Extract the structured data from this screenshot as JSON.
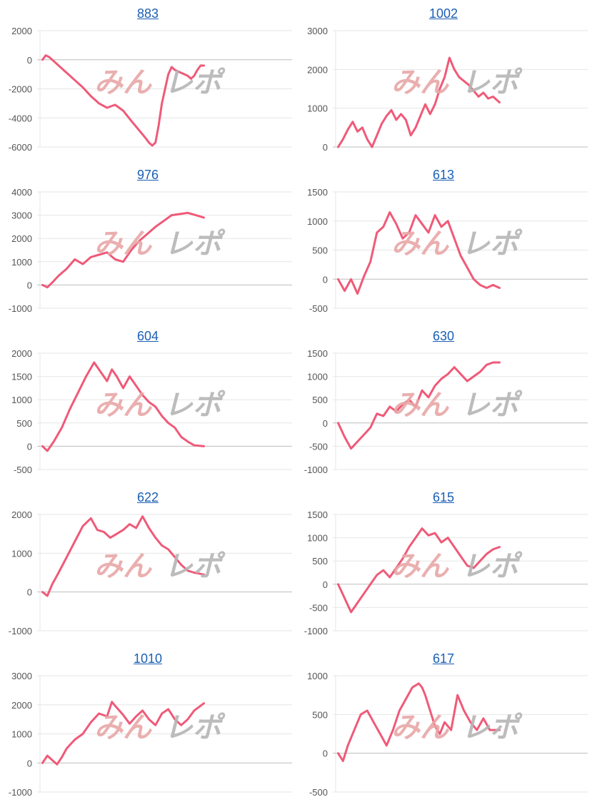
{
  "colors": {
    "line": "#ef5a78",
    "grid": "#e6e6e6",
    "axis": "#bdbdbd",
    "tick": "#555555",
    "link": "#1a5fb4",
    "watermark_pink": "#e8a7a7",
    "watermark_gray": "#b5b5b5"
  },
  "watermark": {
    "text": "みんレポ"
  },
  "chart_data": [
    {
      "type": "line",
      "title": "883",
      "ylim": [
        -6000,
        2000
      ],
      "yticks": [
        2000,
        0,
        -2000,
        -4000,
        -6000
      ],
      "x": [
        0,
        2,
        4,
        8,
        12,
        16,
        20,
        25,
        30,
        35,
        40,
        45,
        50,
        55,
        58,
        61,
        64,
        66,
        68,
        70,
        72,
        74,
        76,
        78,
        80,
        82,
        84,
        86,
        88,
        90,
        92,
        94,
        96,
        98,
        100
      ],
      "values": [
        0,
        300,
        200,
        -200,
        -600,
        -1000,
        -1400,
        -1900,
        -2500,
        -3000,
        -3300,
        -3100,
        -3500,
        -4200,
        -4600,
        -5000,
        -5400,
        -5700,
        -5900,
        -5700,
        -4500,
        -3000,
        -2000,
        -1000,
        -500,
        -700,
        -800,
        -900,
        -1000,
        -1100,
        -1300,
        -1100,
        -700,
        -400,
        -400
      ]
    },
    {
      "type": "line",
      "title": "1002",
      "ylim": [
        0,
        3000
      ],
      "yticks": [
        3000,
        2000,
        1000,
        0
      ],
      "x": [
        0,
        3,
        6,
        9,
        12,
        15,
        18,
        21,
        24,
        27,
        30,
        33,
        36,
        39,
        42,
        45,
        48,
        51,
        54,
        57,
        60,
        63,
        66,
        69,
        72,
        75,
        78,
        81,
        84,
        87,
        90,
        93,
        96,
        100
      ],
      "values": [
        0,
        200,
        450,
        650,
        400,
        500,
        200,
        0,
        300,
        600,
        800,
        950,
        700,
        850,
        700,
        300,
        500,
        800,
        1100,
        850,
        1100,
        1500,
        1800,
        2300,
        2000,
        1800,
        1700,
        1600,
        1450,
        1300,
        1400,
        1250,
        1300,
        1150
      ]
    },
    {
      "type": "line",
      "title": "976",
      "ylim": [
        -1000,
        4000
      ],
      "yticks": [
        4000,
        3000,
        2000,
        1000,
        0,
        -1000
      ],
      "x": [
        0,
        3,
        6,
        10,
        15,
        20,
        25,
        30,
        35,
        40,
        45,
        50,
        55,
        60,
        65,
        70,
        75,
        80,
        85,
        90,
        95,
        100
      ],
      "values": [
        0,
        -100,
        100,
        400,
        700,
        1100,
        900,
        1200,
        1300,
        1400,
        1100,
        1000,
        1500,
        1900,
        2200,
        2500,
        2750,
        3000,
        3050,
        3100,
        3000,
        2900
      ]
    },
    {
      "type": "line",
      "title": "613",
      "ylim": [
        -500,
        1500
      ],
      "yticks": [
        1500,
        1000,
        500,
        0,
        -500
      ],
      "x": [
        0,
        4,
        8,
        12,
        16,
        20,
        24,
        28,
        32,
        36,
        40,
        44,
        48,
        52,
        56,
        60,
        64,
        68,
        72,
        76,
        80,
        84,
        88,
        92,
        96,
        100
      ],
      "values": [
        0,
        -200,
        0,
        -250,
        50,
        300,
        800,
        900,
        1150,
        950,
        700,
        800,
        1100,
        950,
        800,
        1100,
        900,
        1000,
        700,
        400,
        200,
        0,
        -100,
        -150,
        -100,
        -150
      ]
    },
    {
      "type": "line",
      "title": "604",
      "ylim": [
        -500,
        2000
      ],
      "yticks": [
        2000,
        1500,
        1000,
        500,
        0,
        -500
      ],
      "x": [
        0,
        3,
        7,
        12,
        17,
        22,
        27,
        32,
        37,
        40,
        43,
        46,
        50,
        54,
        58,
        62,
        66,
        70,
        74,
        78,
        82,
        86,
        90,
        94,
        100
      ],
      "values": [
        0,
        -100,
        100,
        400,
        800,
        1150,
        1500,
        1800,
        1550,
        1400,
        1650,
        1500,
        1250,
        1500,
        1300,
        1100,
        950,
        850,
        650,
        500,
        400,
        200,
        100,
        20,
        0
      ]
    },
    {
      "type": "line",
      "title": "630",
      "ylim": [
        -1000,
        1500
      ],
      "yticks": [
        1500,
        1000,
        500,
        0,
        -500,
        -1000
      ],
      "x": [
        0,
        4,
        8,
        12,
        16,
        20,
        24,
        28,
        32,
        36,
        40,
        44,
        48,
        52,
        56,
        60,
        64,
        68,
        72,
        76,
        80,
        84,
        88,
        92,
        96,
        100
      ],
      "values": [
        0,
        -300,
        -550,
        -400,
        -250,
        -100,
        200,
        150,
        350,
        250,
        400,
        500,
        350,
        700,
        550,
        800,
        950,
        1050,
        1200,
        1050,
        900,
        1000,
        1100,
        1250,
        1300,
        1300
      ]
    },
    {
      "type": "line",
      "title": "622",
      "ylim": [
        -1000,
        2000
      ],
      "yticks": [
        2000,
        1000,
        0,
        -1000
      ],
      "x": [
        0,
        3,
        6,
        10,
        15,
        20,
        25,
        30,
        34,
        38,
        42,
        46,
        50,
        54,
        58,
        62,
        66,
        70,
        74,
        78,
        82,
        86,
        90,
        94,
        100
      ],
      "values": [
        0,
        -100,
        200,
        500,
        900,
        1300,
        1700,
        1900,
        1600,
        1550,
        1400,
        1500,
        1600,
        1750,
        1650,
        1950,
        1650,
        1400,
        1200,
        1100,
        900,
        700,
        550,
        500,
        450
      ]
    },
    {
      "type": "line",
      "title": "615",
      "ylim": [
        -1000,
        1500
      ],
      "yticks": [
        1500,
        1000,
        500,
        0,
        -500,
        -1000
      ],
      "x": [
        0,
        4,
        8,
        12,
        16,
        20,
        24,
        28,
        32,
        36,
        40,
        44,
        48,
        52,
        56,
        60,
        64,
        68,
        72,
        76,
        80,
        84,
        88,
        92,
        96,
        100
      ],
      "values": [
        0,
        -300,
        -600,
        -400,
        -200,
        0,
        200,
        300,
        150,
        350,
        550,
        800,
        1000,
        1200,
        1050,
        1100,
        900,
        1000,
        800,
        600,
        400,
        350,
        500,
        650,
        750,
        800
      ]
    },
    {
      "type": "line",
      "title": "1010",
      "ylim": [
        -1000,
        3000
      ],
      "yticks": [
        3000,
        2000,
        1000,
        0,
        -1000
      ],
      "x": [
        0,
        3,
        6,
        9,
        12,
        15,
        20,
        25,
        30,
        35,
        40,
        43,
        46,
        50,
        54,
        58,
        62,
        66,
        70,
        74,
        78,
        82,
        86,
        90,
        94,
        100
      ],
      "values": [
        0,
        250,
        100,
        -50,
        200,
        500,
        800,
        1000,
        1400,
        1700,
        1600,
        2100,
        1900,
        1650,
        1350,
        1600,
        1800,
        1500,
        1300,
        1700,
        1850,
        1500,
        1300,
        1500,
        1800,
        2050
      ]
    },
    {
      "type": "line",
      "title": "617",
      "ylim": [
        -500,
        1000
      ],
      "yticks": [
        1000,
        500,
        0,
        -500
      ],
      "x": [
        0,
        3,
        6,
        10,
        14,
        18,
        22,
        26,
        30,
        34,
        38,
        42,
        46,
        50,
        52,
        54,
        57,
        60,
        63,
        66,
        70,
        74,
        78,
        82,
        86,
        90,
        94,
        100
      ],
      "values": [
        0,
        -100,
        100,
        300,
        500,
        550,
        400,
        250,
        100,
        300,
        550,
        700,
        850,
        900,
        850,
        750,
        550,
        350,
        250,
        400,
        300,
        750,
        550,
        400,
        300,
        450,
        300,
        300
      ]
    }
  ]
}
